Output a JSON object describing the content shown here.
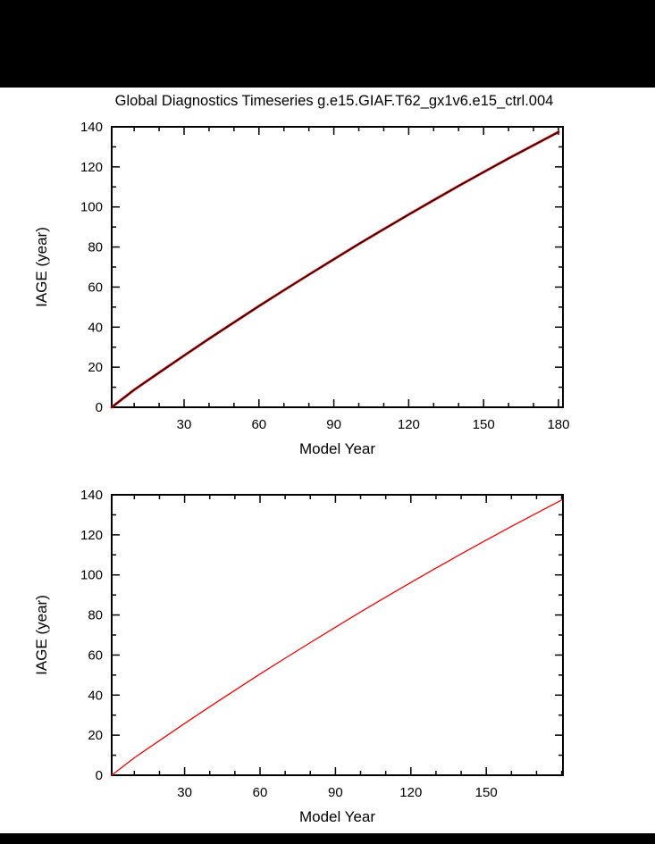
{
  "page": {
    "background_color": "#000000",
    "panel_color": "#ffffff",
    "title": "Global Diagnostics Timeseries g.e15.GIAF.T62_gx1v6.e15_ctrl.004"
  },
  "chart_data": [
    {
      "type": "line",
      "title": "Global Diagnostics Timeseries g.e15.GIAF.T62_gx1v6.e15_ctrl.004",
      "xlabel": "Model Year",
      "ylabel": "IAGE (year)",
      "xlim": [
        1,
        181.8
      ],
      "ylim": [
        0,
        140
      ],
      "xticks": [
        30,
        60,
        90,
        120,
        150,
        180
      ],
      "yticks": [
        0,
        20,
        40,
        60,
        80,
        100,
        120,
        140
      ],
      "x_minor_step": 10,
      "y_minor_step": 10,
      "grid": false,
      "legend": "none",
      "series": [
        {
          "name": "iage-red-underlay",
          "color": "#ff0000",
          "width": 2.8,
          "x": [
            1,
            10,
            20,
            30,
            40,
            50,
            60,
            70,
            80,
            90,
            100,
            110,
            120,
            130,
            140,
            150,
            160,
            170,
            180
          ],
          "y": [
            0,
            8.7,
            17.3,
            25.8,
            34.2,
            42.4,
            50.5,
            58.4,
            66.2,
            73.9,
            81.5,
            88.9,
            96.2,
            103.4,
            110.5,
            117.4,
            124.2,
            130.8,
            137.4
          ]
        },
        {
          "name": "iage-black-overlay",
          "color": "#000000",
          "width": 1.3,
          "x": [
            1,
            10,
            20,
            30,
            40,
            50,
            60,
            70,
            80,
            90,
            100,
            110,
            120,
            130,
            140,
            150,
            160,
            170,
            180
          ],
          "y": [
            0,
            8.7,
            17.3,
            25.8,
            34.2,
            42.4,
            50.5,
            58.4,
            66.2,
            73.9,
            81.5,
            88.9,
            96.2,
            103.4,
            110.5,
            117.4,
            124.2,
            130.8,
            137.4
          ]
        }
      ]
    },
    {
      "type": "line",
      "title": "",
      "xlabel": "Model Year",
      "ylabel": "IAGE (year)",
      "xlim": [
        1,
        180.5
      ],
      "ylim": [
        0,
        140
      ],
      "xticks": [
        30,
        60,
        90,
        120,
        150
      ],
      "yticks": [
        0,
        20,
        40,
        60,
        80,
        100,
        120,
        140
      ],
      "x_minor_step": 10,
      "y_minor_step": 10,
      "grid": false,
      "legend": "none",
      "series": [
        {
          "name": "iage-red",
          "color": "#ff0000",
          "width": 1.3,
          "x": [
            1,
            10,
            20,
            30,
            40,
            50,
            60,
            70,
            80,
            90,
            100,
            110,
            120,
            130,
            140,
            150,
            160,
            170,
            180
          ],
          "y": [
            0,
            8.7,
            17.3,
            25.8,
            34.2,
            42.4,
            50.5,
            58.4,
            66.2,
            73.9,
            81.5,
            88.9,
            96.2,
            103.4,
            110.5,
            117.4,
            124.2,
            130.8,
            137.4
          ]
        }
      ]
    }
  ]
}
